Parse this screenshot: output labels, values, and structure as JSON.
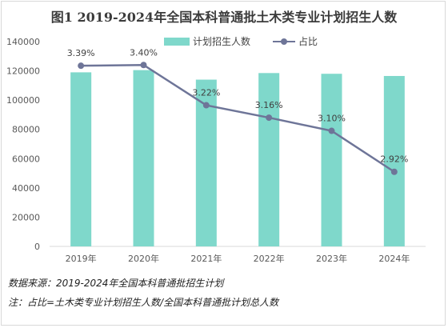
{
  "chart_data": {
    "type": "bar+line",
    "title": "图1 2019-2024年全国本科普通批土木类专业计划招生人数",
    "categories": [
      "2019年",
      "2020年",
      "2021年",
      "2022年",
      "2023年",
      "2024年"
    ],
    "series": [
      {
        "name": "计划招生人数",
        "type": "bar",
        "values": [
          119000,
          120500,
          114000,
          118500,
          118000,
          116500
        ],
        "color": "#7fd8cb"
      },
      {
        "name": "占比",
        "type": "line",
        "values": [
          3.39,
          3.4,
          3.22,
          3.16,
          3.1,
          2.92
        ],
        "labels": [
          "3.39%",
          "3.40%",
          "3.22%",
          "3.16%",
          "3.10%",
          "2.92%"
        ],
        "color": "#6e7598"
      }
    ],
    "y_ticks": [
      "0",
      "20000",
      "40000",
      "60000",
      "80000",
      "100000",
      "120000",
      "140000"
    ],
    "ylim": [
      0,
      140000
    ],
    "line_plot_values": [
      123500,
      124000,
      96500,
      88000,
      79000,
      51000
    ],
    "grid": false,
    "legend": "top-center"
  },
  "notes": {
    "source": "数据来源：2019-2024年全国本科普通批招生计划",
    "footnote": "注：占比=土木类专业计划招生人数/全国本科普通批计划总人数"
  }
}
